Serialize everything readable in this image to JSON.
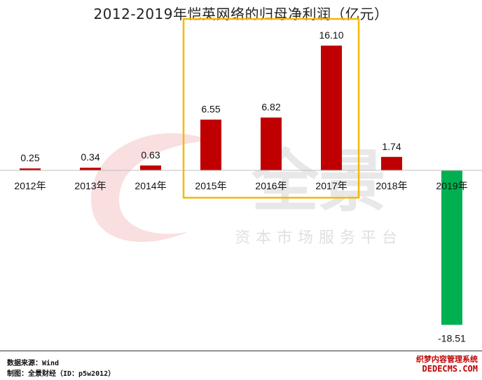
{
  "title": "2012-2019年恺英网络的归母净利润（亿元）",
  "chart_data": {
    "type": "bar",
    "title": "2012-2019年恺英网络的归母净利润（亿元）",
    "categories": [
      "2012年",
      "2013年",
      "2014年",
      "2015年",
      "2016年",
      "2017年",
      "2018年",
      "2019年"
    ],
    "values": [
      0.25,
      0.34,
      0.63,
      6.55,
      6.82,
      16.1,
      1.74,
      -18.51
    ],
    "value_labels": [
      "0.25",
      "0.34",
      "0.63",
      "6.55",
      "6.82",
      "16.10",
      "1.74",
      "-18.51"
    ],
    "xlabel": "",
    "ylabel": "",
    "ylim": [
      -21,
      19
    ],
    "grid": false,
    "legend": "none",
    "colors": {
      "positive": "#c00000",
      "negative": "#00b050",
      "highlight_box": "#f5b800",
      "axis": "#bfbfbf"
    },
    "highlight_categories": [
      "2015年",
      "2016年",
      "2017年"
    ]
  },
  "watermark": {
    "brand": "全景",
    "tagline": "资本市场服务平台",
    "color": "#d9d9d9",
    "swirl_color": "#f4c4c4"
  },
  "footer": {
    "source": "数据来源：Wind",
    "maker": "制图：全景财经（ID：p5w2012）"
  },
  "corner_mark": {
    "cn": "织梦内容管理系统",
    "en": "DEDECMS.COM"
  }
}
